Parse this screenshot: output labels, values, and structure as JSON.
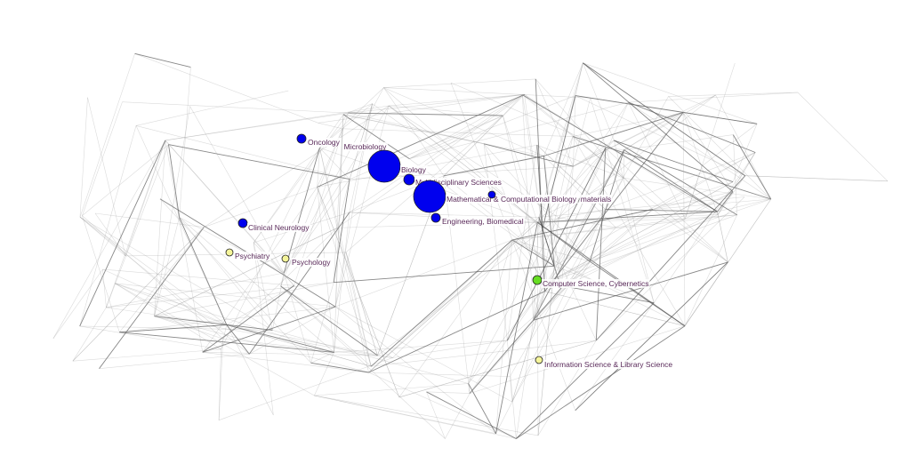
{
  "nodes": [
    {
      "label": "Oncology",
      "color": "#0000ee"
    },
    {
      "label": "Microbiology",
      "color": "#0000ee"
    },
    {
      "label": "Biology",
      "color": "#0000ee"
    },
    {
      "label": "Multidisciplinary Sciences",
      "color": "#0000ee"
    },
    {
      "label": "Mathematical & Computational Biology",
      "color": "#0000ee"
    },
    {
      "label": "materials",
      "color": "#0000ee"
    },
    {
      "label": "Engineering, Biomedical",
      "color": "#0000ee"
    },
    {
      "label": "Clinical Neurology",
      "color": "#0000ee"
    },
    {
      "label": "Psychiatry",
      "color": "#f5f59a"
    },
    {
      "label": "Psychology",
      "color": "#f5f59a"
    },
    {
      "label": "Computer Science, Cybernetics",
      "color": "#66dd22"
    },
    {
      "label": "Information Science & Library Science",
      "color": "#f5f59a"
    }
  ],
  "edge_color": "#555555"
}
